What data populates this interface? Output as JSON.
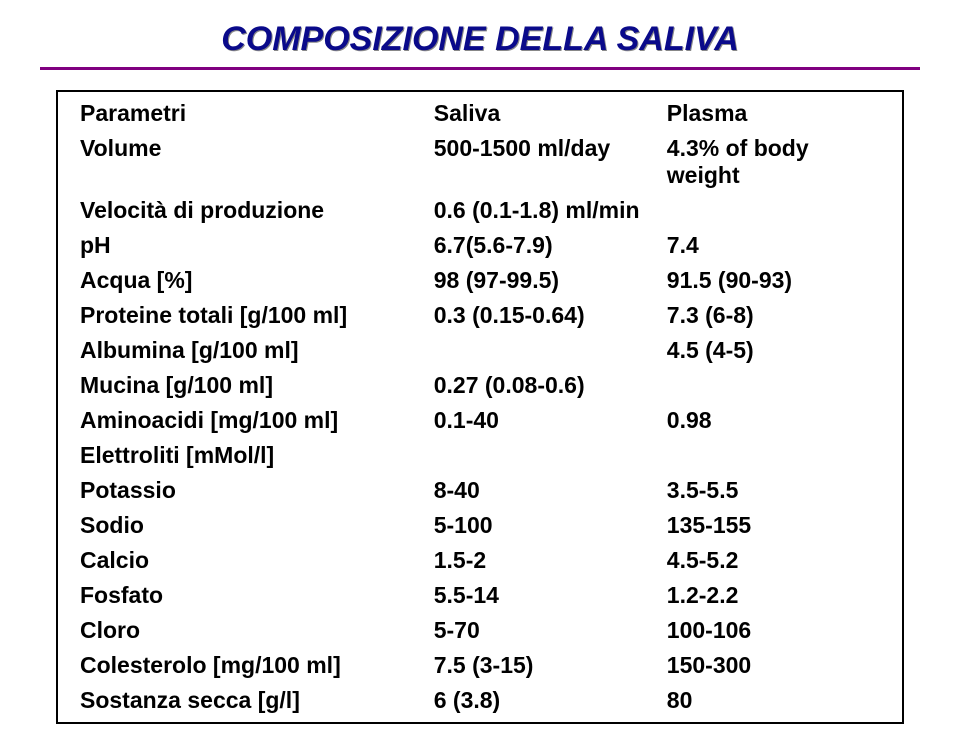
{
  "title": "COMPOSIZIONE DELLA SALIVA",
  "headers": {
    "param": "Parametri",
    "saliva": "Saliva",
    "plasma": "Plasma"
  },
  "rows": [
    {
      "param": "Volume",
      "saliva": "500-1500 ml/day",
      "plasma": "4.3% of body weight"
    },
    {
      "param": "Velocità di produzione",
      "saliva": "0.6 (0.1-1.8) ml/min",
      "plasma": ""
    },
    {
      "param": "pH",
      "saliva": "6.7(5.6-7.9)",
      "plasma": "7.4"
    },
    {
      "param": "Acqua [%]",
      "saliva": "98 (97-99.5)",
      "plasma": "91.5 (90-93)"
    },
    {
      "param": "Proteine totali [g/100 ml]",
      "saliva": "0.3 (0.15-0.64)",
      "plasma": "7.3 (6-8)"
    },
    {
      "param": "Albumina [g/100 ml]",
      "saliva": "",
      "plasma": "4.5 (4-5)"
    },
    {
      "param": "Mucina [g/100 ml]",
      "saliva": "0.27 (0.08-0.6)",
      "plasma": ""
    },
    {
      "param": "Aminoacidi [mg/100 ml]",
      "saliva": "0.1-40",
      "plasma": "0.98"
    },
    {
      "param": "Elettroliti [mMol/l]",
      "saliva": "",
      "plasma": ""
    },
    {
      "param": "Potassio",
      "saliva": "8-40",
      "plasma": "3.5-5.5"
    },
    {
      "param": "Sodio",
      "saliva": "5-100",
      "plasma": "135-155"
    },
    {
      "param": "Calcio",
      "saliva": "1.5-2",
      "plasma": "4.5-5.2"
    },
    {
      "param": "Fosfato",
      "saliva": "5.5-14",
      "plasma": "1.2-2.2"
    },
    {
      "param": "Cloro",
      "saliva": "5-70",
      "plasma": "100-106"
    },
    {
      "param": "Colesterolo [mg/100 ml]",
      "saliva": "7.5 (3-15)",
      "plasma": "150-300"
    },
    {
      "param": "Sostanza secca [g/l]",
      "saliva": "6 (3.8)",
      "plasma": "80"
    }
  ]
}
